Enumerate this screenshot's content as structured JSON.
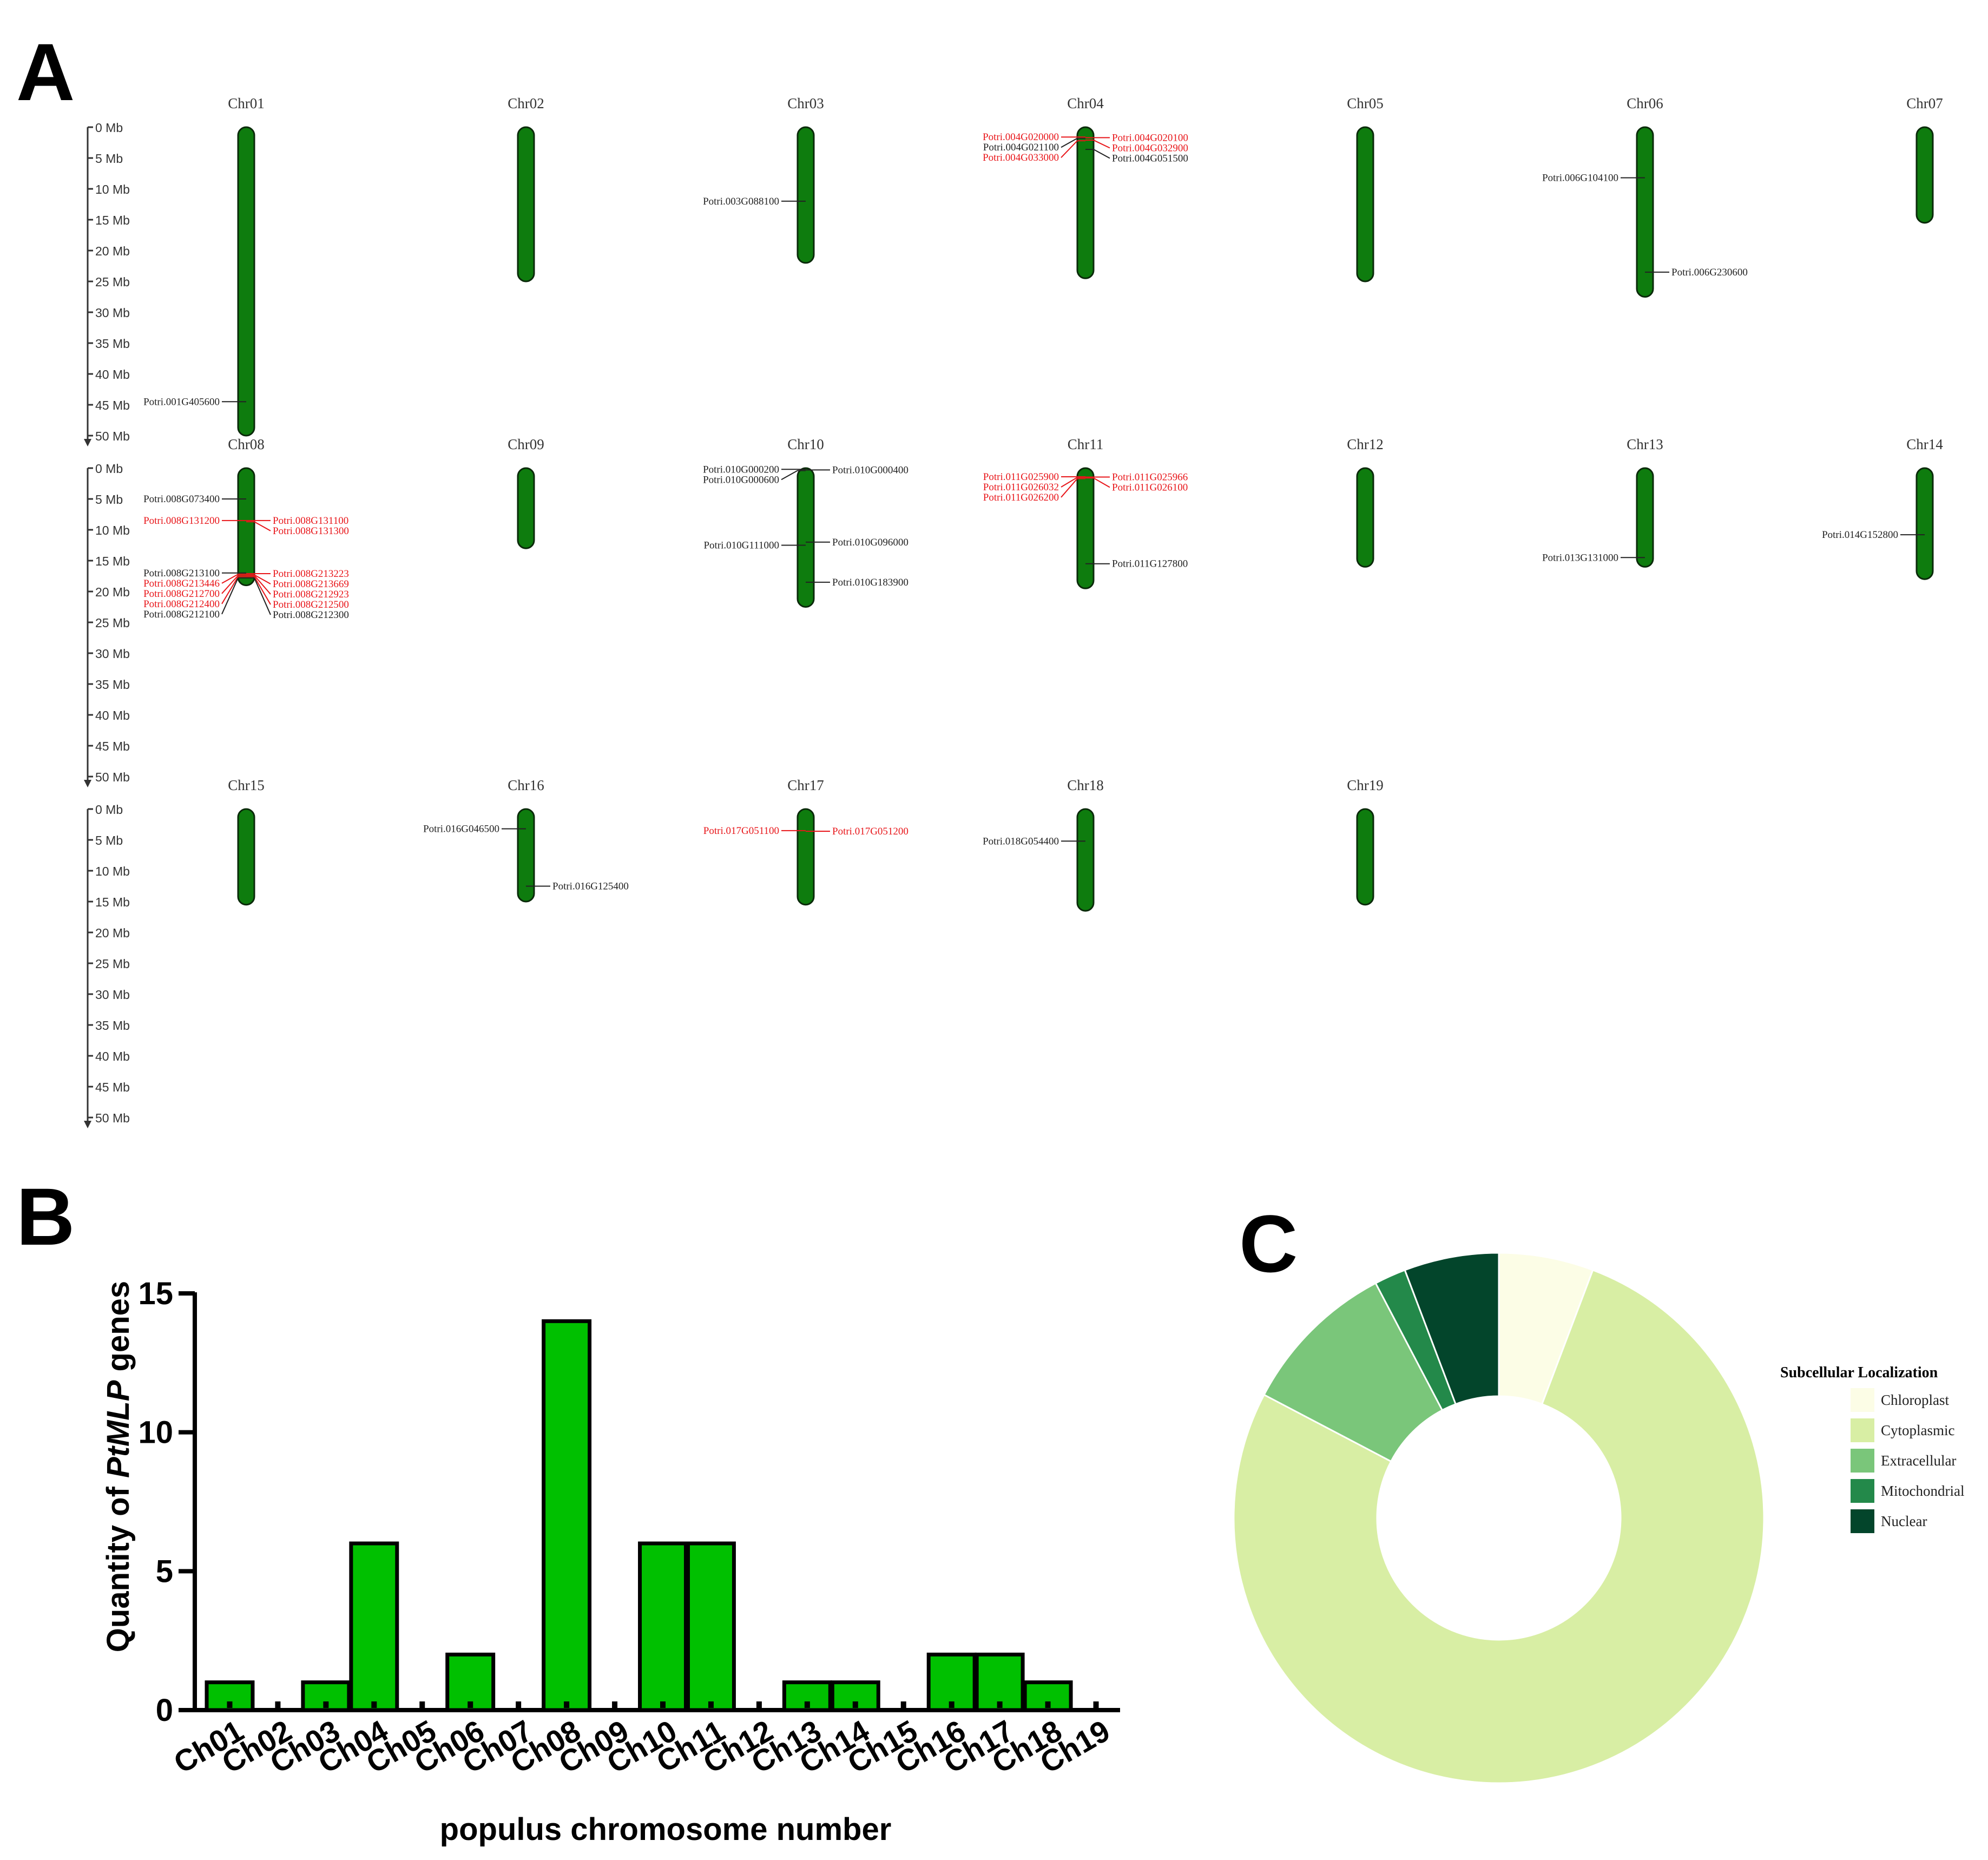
{
  "panels": {
    "a": "A",
    "b": "B",
    "c": "C"
  },
  "chromosome_map": {
    "scale_ticks": [
      "0 Mb",
      "5 Mb",
      "10 Mb",
      "15 Mb",
      "20 Mb",
      "25 Mb",
      "30 Mb",
      "35 Mb",
      "40 Mb",
      "45 Mb",
      "50 Mb"
    ],
    "chromosome_color": "#0e7c0e",
    "highlight_color": "#e8161a",
    "chromosomes": [
      {
        "name": "Chr01",
        "length_mb": 50,
        "genes": [
          {
            "id": "Potri.001G405600",
            "pos": 44.5,
            "side": "left",
            "red": false
          }
        ]
      },
      {
        "name": "Chr02",
        "length_mb": 25,
        "genes": []
      },
      {
        "name": "Chr03",
        "length_mb": 22,
        "genes": [
          {
            "id": "Potri.003G088100",
            "pos": 12,
            "side": "left",
            "red": false
          }
        ]
      },
      {
        "name": "Chr04",
        "length_mb": 24.5,
        "genes": [
          {
            "id": "Potri.004G020000",
            "pos": 1.6,
            "side": "left",
            "red": true
          },
          {
            "id": "Potri.004G021100",
            "pos": 1.8,
            "side": "left",
            "red": false
          },
          {
            "id": "Potri.004G033000",
            "pos": 2.2,
            "side": "left",
            "red": true
          },
          {
            "id": "Potri.004G020100",
            "pos": 1.7,
            "side": "right",
            "red": true
          },
          {
            "id": "Potri.004G032900",
            "pos": 2.1,
            "side": "right",
            "red": true
          },
          {
            "id": "Potri.004G051500",
            "pos": 3.6,
            "side": "right",
            "red": false
          }
        ]
      },
      {
        "name": "Chr05",
        "length_mb": 25,
        "genes": []
      },
      {
        "name": "Chr06",
        "length_mb": 27.5,
        "genes": [
          {
            "id": "Potri.006G104100",
            "pos": 8.2,
            "side": "left",
            "red": false
          },
          {
            "id": "Potri.006G230600",
            "pos": 23.5,
            "side": "right",
            "red": false
          }
        ]
      },
      {
        "name": "Chr07",
        "length_mb": 15.5,
        "genes": []
      },
      {
        "name": "Chr08",
        "length_mb": 19,
        "genes": [
          {
            "id": "Potri.008G073400",
            "pos": 5,
            "side": "left",
            "red": false
          },
          {
            "id": "Potri.008G131200",
            "pos": 8.5,
            "side": "left",
            "red": true
          },
          {
            "id": "Potri.008G213100",
            "pos": 17,
            "side": "left",
            "red": false
          },
          {
            "id": "Potri.008G213446",
            "pos": 17.2,
            "side": "left",
            "red": true
          },
          {
            "id": "Potri.008G212700",
            "pos": 17.4,
            "side": "left",
            "red": true
          },
          {
            "id": "Potri.008G212400",
            "pos": 17.6,
            "side": "left",
            "red": true
          },
          {
            "id": "Potri.008G212100",
            "pos": 17.8,
            "side": "left",
            "red": false
          },
          {
            "id": "Potri.008G131100",
            "pos": 8.5,
            "side": "right",
            "red": true
          },
          {
            "id": "Potri.008G131300",
            "pos": 8.7,
            "side": "right",
            "red": true
          },
          {
            "id": "Potri.008G213223",
            "pos": 17.1,
            "side": "right",
            "red": true
          },
          {
            "id": "Potri.008G213669",
            "pos": 17.3,
            "side": "right",
            "red": true
          },
          {
            "id": "Potri.008G212923",
            "pos": 17.4,
            "side": "right",
            "red": true
          },
          {
            "id": "Potri.008G212500",
            "pos": 17.6,
            "side": "right",
            "red": true
          },
          {
            "id": "Potri.008G212300",
            "pos": 17.8,
            "side": "right",
            "red": false
          }
        ]
      },
      {
        "name": "Chr09",
        "length_mb": 13,
        "genes": []
      },
      {
        "name": "Chr10",
        "length_mb": 22.5,
        "genes": [
          {
            "id": "Potri.010G000200",
            "pos": 0.2,
            "side": "left",
            "red": false
          },
          {
            "id": "Potri.010G000600",
            "pos": 0.4,
            "side": "left",
            "red": false
          },
          {
            "id": "Potri.010G111000",
            "pos": 12.5,
            "side": "left",
            "red": false
          },
          {
            "id": "Potri.010G000400",
            "pos": 0.3,
            "side": "right",
            "red": false
          },
          {
            "id": "Potri.010G096000",
            "pos": 12,
            "side": "right",
            "red": false
          },
          {
            "id": "Potri.010G183900",
            "pos": 18.5,
            "side": "right",
            "red": false
          }
        ]
      },
      {
        "name": "Chr11",
        "length_mb": 19.5,
        "genes": [
          {
            "id": "Potri.011G025900",
            "pos": 1.4,
            "side": "left",
            "red": true
          },
          {
            "id": "Potri.011G026032",
            "pos": 1.5,
            "side": "left",
            "red": true
          },
          {
            "id": "Potri.011G026200",
            "pos": 1.7,
            "side": "left",
            "red": true
          },
          {
            "id": "Potri.011G025966",
            "pos": 1.45,
            "side": "right",
            "red": true
          },
          {
            "id": "Potri.011G026100",
            "pos": 1.6,
            "side": "right",
            "red": true
          },
          {
            "id": "Potri.011G127800",
            "pos": 15.5,
            "side": "right",
            "red": false
          }
        ]
      },
      {
        "name": "Chr12",
        "length_mb": 16,
        "genes": []
      },
      {
        "name": "Chr13",
        "length_mb": 16,
        "genes": [
          {
            "id": "Potri.013G131000",
            "pos": 14.5,
            "side": "left",
            "red": false
          }
        ]
      },
      {
        "name": "Chr14",
        "length_mb": 18,
        "genes": [
          {
            "id": "Potri.014G152800",
            "pos": 10.8,
            "side": "left",
            "red": false
          }
        ]
      },
      {
        "name": "Chr15",
        "length_mb": 15.5,
        "genes": []
      },
      {
        "name": "Chr16",
        "length_mb": 15,
        "genes": [
          {
            "id": "Potri.016G046500",
            "pos": 3.2,
            "side": "left",
            "red": false
          },
          {
            "id": "Potri.016G125400",
            "pos": 12.5,
            "side": "right",
            "red": false
          }
        ]
      },
      {
        "name": "Chr17",
        "length_mb": 15.5,
        "genes": [
          {
            "id": "Potri.017G051100",
            "pos": 3.5,
            "side": "left",
            "red": true
          },
          {
            "id": "Potri.017G051200",
            "pos": 3.6,
            "side": "right",
            "red": true
          }
        ]
      },
      {
        "name": "Chr18",
        "length_mb": 16.5,
        "genes": [
          {
            "id": "Potri.018G054400",
            "pos": 5.2,
            "side": "left",
            "red": false
          }
        ]
      },
      {
        "name": "Chr19",
        "length_mb": 15.5,
        "genes": []
      }
    ]
  },
  "chart_data": [
    {
      "type": "bar",
      "title": "",
      "xlabel": "populus chromosome number",
      "ylabel_prefix": "Quantity of ",
      "ylabel_italic": "PtMLP",
      "ylabel_suffix": " genes",
      "ylim": [
        0,
        15
      ],
      "yticks": [
        0,
        5,
        10,
        15
      ],
      "bar_color": "#00c000",
      "categories": [
        "Ch01",
        "Ch02",
        "Ch03",
        "Ch04",
        "Ch05",
        "Ch06",
        "Ch07",
        "Ch08",
        "Ch09",
        "Ch10",
        "Ch11",
        "Ch12",
        "Ch13",
        "Ch14",
        "Ch15",
        "Ch16",
        "Ch17",
        "Ch18",
        "Ch19"
      ],
      "values": [
        1,
        0,
        1,
        6,
        0,
        2,
        0,
        14,
        0,
        6,
        6,
        0,
        1,
        1,
        0,
        2,
        2,
        1,
        0
      ]
    },
    {
      "type": "pie",
      "style": "donut",
      "title": "",
      "legend_title": "Subcellular Localization",
      "legend_position": "right",
      "slices": [
        {
          "label": "Chloroplast",
          "value": 3,
          "color": "#fcfde6"
        },
        {
          "label": "Cytoplasmic",
          "value": 40,
          "color": "#d8eea4"
        },
        {
          "label": "Extracellular",
          "value": 5,
          "color": "#7ac67a"
        },
        {
          "label": "Mitochondrial",
          "value": 1,
          "color": "#23894a"
        },
        {
          "label": "Nuclear",
          "value": 3,
          "color": "#03452b"
        }
      ]
    }
  ]
}
